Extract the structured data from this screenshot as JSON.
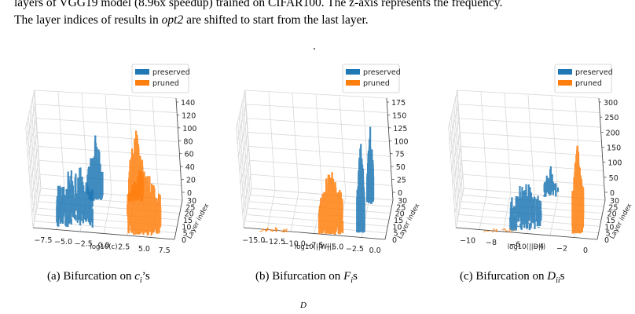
{
  "caption": {
    "line1": "layers of VGG19 model (8.96x speedup) trained on CIFAR100. The z-axis represents the frequency.",
    "line2_pre": "The layer indices of results in ",
    "line2_em": "opt2",
    "line2_post": " are shifted to start from the last layer.",
    "dot": "."
  },
  "colors": {
    "preserved": "#1f77b4",
    "pruned": "#ff7f0e",
    "grid": "#d8d8d8"
  },
  "panels": [
    {
      "legend": [
        "preserved",
        "pruned"
      ],
      "xlabel": "log10(c)",
      "ylabel": "Layer index",
      "xticks": [
        "−7.5",
        "−5.0",
        "−2.5",
        "0.0",
        "2.5",
        "5.0",
        "7.5"
      ],
      "yticks": [
        "0",
        "5",
        "10",
        "15",
        "20",
        "25",
        "30"
      ],
      "zticks": [
        "0",
        "20",
        "40",
        "60",
        "80",
        "100",
        "120",
        "140"
      ],
      "caption_label": "(a) Bifurcation on ",
      "caption_var": "c",
      "caption_sub": "i",
      "caption_suffix": "’s"
    },
    {
      "legend": [
        "preserved",
        "pruned"
      ],
      "xlabel": "log10(||W||)",
      "ylabel": "Layer index",
      "xticks": [
        "−15.0",
        "−12.5",
        "−10.0",
        "−7.5",
        "−5.0",
        "−2.5",
        "0.0"
      ],
      "yticks": [
        "0",
        "5",
        "10",
        "15",
        "20",
        "25",
        "30"
      ],
      "zticks": [
        "0",
        "25",
        "50",
        "75",
        "100",
        "125",
        "150",
        "175"
      ],
      "caption_label": "(b) Bifurcation on ",
      "caption_var": "F",
      "caption_sub": "i",
      "caption_suffix": "s"
    },
    {
      "legend": [
        "preserved",
        "pruned"
      ],
      "xlabel": "log10(||D||)",
      "ylabel": "Layer index",
      "xticks": [
        "−10",
        "−8",
        "−6",
        "−4",
        "−2",
        "0"
      ],
      "yticks": [
        "0",
        "5",
        "10",
        "15",
        "20",
        "25",
        "30"
      ],
      "zticks": [
        "0",
        "50",
        "100",
        "150",
        "200",
        "250",
        "300"
      ],
      "caption_label": "(c) Bifurcation on ",
      "caption_var": "D",
      "caption_sub": "ii",
      "caption_suffix": "s"
    }
  ],
  "bottom_fragment": "D"
}
